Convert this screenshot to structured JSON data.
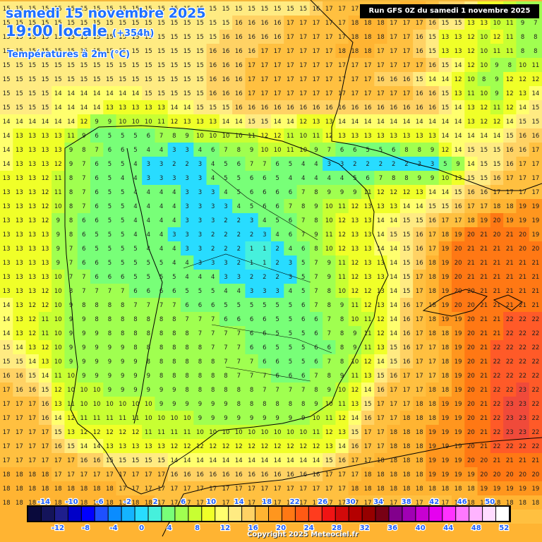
{
  "header": {
    "date_line": "samedi 15 novembre 2025",
    "time_line": "19:00 locale",
    "lead_time": "(+354h)",
    "variable": "Températures à 2m (°C)",
    "run_info": "Run GFS 0Z du samedi 1 novembre 2025"
  },
  "footer": {
    "copyright": "Copyright 2025 Meteociel.fr"
  },
  "colors": {
    "land_outline": "#000000",
    "value_text": "#202020"
  },
  "legend": {
    "upper_labels": [
      "-14",
      "-10",
      "-6",
      "-2",
      "2",
      "6",
      "10",
      "14",
      "18",
      "22",
      "26",
      "30",
      "34",
      "38",
      "42",
      "46",
      "50"
    ],
    "lower_labels": [
      "-12",
      "-8",
      "-4",
      "0",
      "4",
      "8",
      "12",
      "16",
      "20",
      "24",
      "28",
      "32",
      "36",
      "40",
      "44",
      "48",
      "52"
    ],
    "colors": [
      "#0a0a3c",
      "#14145a",
      "#1e1e8c",
      "#0000c8",
      "#0000ff",
      "#1e50ff",
      "#0a8cff",
      "#14b4ff",
      "#28dcff",
      "#46f0dc",
      "#78ff78",
      "#a0ff50",
      "#c8ff32",
      "#f0ff28",
      "#ffff6e",
      "#ffeb82",
      "#ffd264",
      "#ffb432",
      "#ff961e",
      "#ff7814",
      "#ff5a14",
      "#ff3c1e",
      "#f01414",
      "#d20a0a",
      "#b40000",
      "#960000",
      "#780014",
      "#82008c",
      "#a000b4",
      "#c800d2",
      "#e600f0",
      "#ff32ff",
      "#ff78ff",
      "#ffb4ff",
      "#ffdcff",
      "#ffffff"
    ]
  },
  "grid": {
    "rows": [
      "15 15 15 15 15 15 15 15 15 15 15 15 15 15 15 15 15 15 15 15 15 15 15 15 16 17 17 17 17 17 17 18 18 17 16 16 15 13 12 10 9 8",
      "15 15 15 15 15 15 15 15 15 15 15 15 15 15 15 15 15 15 16 16 16 16 17 17 17 17 17 18 18 18 17 17 17 16 15 15 13 13 10 11 9 7",
      "15 15 15 15 15 15 15 15 15 15 15 15 15 15 15 15 15 16 16 16 16 16 17 17 17 17 17 18 18 18 17 17 16 15 13 13 12 10 12 11 8 8",
      "15 15 15 15 15 15 15 15 15 15 15 15 15 15 15 15 16 16 16 16 17 17 17 17 17 17 18 18 18 17 17 17 16 15 13 13 12 10 11 11 8 8",
      "15 15 15 15 15 15 15 15 15 15 15 15 15 15 15 15 16 16 16 17 17 17 17 17 17 17 17 17 17 17 17 17 17 16 15 14 12 10 9 8 10 11",
      "15 15 15 15 15 15 15 15 15 15 15 15 15 15 15 15 16 16 16 17 17 17 17 17 17 17 17 17 17 16 16 16 15 14 14 12 10 8 9 12 12 12",
      "15 15 15 15 14 14 14 14 14 14 14 15 15 15 15 15 16 16 16 17 17 17 17 17 17 17 17 17 17 17 17 17 16 16 15 13 11 10 9 12 13 14",
      "15 15 15 15 14 14 14 14 13 13 13 13 13 14 14 15 15 15 16 16 16 16 16 16 16 16 16 16 16 16 16 16 16 16 15 14 13 12 11 12 14 15",
      "14 14 14 14 14 14 12 9 9 10 10 10 11 12 13 13 13 14 14 15 15 14 14 12 13 13 14 14 14 14 14 14 14 14 14 14 13 12 12 14 15 15",
      "14 13 13 13 13 11 9 6 5 5 5 6 7 8 9 10 10 10 10 11 12 12 11 10 11 12 13 13 13 13 13 13 13 13 14 14 14 14 14 15 16 16",
      "14 13 13 13 13 9 8 7 6 6 5 4 4 3 3 4 6 7 8 9 10 10 11 10 9 7 6 6 5 5 6 8 8 9 12 14 15 15 15 16 16 17",
      "14 13 13 13 12 9 7 6 5 5 4 3 3 2 2 3 4 5 6 7 7 6 5 4 4 3 3 2 2 2 2 2 3 3 5 9 14 15 15 16 17 17",
      "13 13 13 12 11 8 7 6 5 4 4 3 3 3 3 3 4 5 5 6 6 5 4 4 4 4 4 5 6 7 8 8 9 9 10 13 15 15 16 17 17 17",
      "13 13 13 12 11 8 7 6 5 5 4 4 4 4 3 3 3 4 5 6 6 6 6 7 8 9 9 9 11 12 12 12 13 14 14 15 16 16 17 17 17 17",
      "13 13 13 12 10 8 7 6 5 5 4 4 4 4 3 3 3 3 4 5 6 6 7 8 9 10 11 12 13 13 13 14 14 15 15 16 17 17 18 18 19 19",
      "13 13 13 12 9 8 6 6 5 5 4 4 4 4 3 3 3 2 2 3 4 5 6 7 8 10 12 13 13 14 14 15 15 16 17 17 18 19 20 19 19 19",
      "13 13 13 13 9 8 6 5 5 5 4 4 4 3 3 3 2 2 2 2 3 4 6 7 9 11 12 13 13 14 15 15 16 17 18 19 20 21 20 21 20 19",
      "13 13 13 13 9 7 6 5 5 5 5 4 4 4 3 3 2 2 2 1 1 2 4 6 8 10 12 13 13 14 14 15 16 17 19 20 21 21 21 21 20 20",
      "13 13 13 13 9 7 6 6 5 5 5 5 5 4 4 3 3 3 2 1 1 2 3 5 7 9 11 12 13 13 14 15 16 18 19 20 21 21 21 21 21 21",
      "13 13 13 13 10 7 7 6 6 6 5 5 5 5 4 4 4 3 3 2 2 2 3 5 7 9 11 12 13 13 14 15 17 18 19 20 21 21 21 21 21 21",
      "13 13 13 12 10 8 7 7 7 7 6 6 6 6 5 5 5 4 4 3 3 3 4 5 7 8 10 12 12 13 14 15 17 18 19 20 20 21 21 21 21 21",
      "14 13 12 12 10 9 8 8 8 8 7 7 7 7 6 6 6 5 5 5 5 5 5 6 7 8 9 11 12 13 14 16 17 18 19 20 20 21 21 21 21 21",
      "14 13 12 11 10 9 9 8 8 8 8 8 8 8 7 7 7 6 6 6 6 5 5 6 6 7 8 10 11 12 14 16 17 18 19 19 20 21 21 22 22 22",
      "14 13 12 11 10 9 9 9 8 8 8 8 8 8 8 7 7 7 7 6 6 5 5 5 6 7 8 9 11 12 14 16 17 18 18 19 20 21 21 22 22 22",
      "15 14 13 12 10 9 9 9 9 9 8 8 8 8 8 8 7 7 7 6 6 5 5 5 6 6 8 9 11 13 15 16 17 17 18 19 20 21 22 22 22 22",
      "15 15 14 13 10 9 9 9 9 9 9 8 8 8 8 8 8 7 7 7 6 6 5 5 6 7 8 10 12 14 15 16 17 17 18 19 20 21 22 22 22 22",
      "16 16 15 14 11 10 9 9 9 9 9 9 8 8 8 8 8 8 7 7 7 6 6 6 7 8 9 11 13 15 16 17 17 17 18 19 20 21 22 22 22 22",
      "17 16 16 15 12 10 10 10 9 9 9 9 9 9 8 8 8 8 8 8 7 7 7 7 8 9 10 12 14 16 17 17 17 18 18 19 20 21 22 22 23 22",
      "17 17 17 16 13 11 10 10 10 10 10 10 9 9 9 9 9 9 8 8 8 8 8 8 9 10 11 13 15 17 17 17 18 18 19 19 20 21 22 23 23 22",
      "17 17 17 16 14 12 11 11 11 11 11 10 10 10 10 9 9 9 9 9 9 9 9 9 10 11 12 14 16 17 17 18 18 18 19 19 20 21 22 23 23 22",
      "17 17 17 17 15 13 12 12 12 12 12 11 11 11 11 10 10 10 10 10 10 10 10 10 11 12 13 15 17 17 18 18 18 19 19 19 20 21 22 23 23 22",
      "17 17 17 17 16 15 14 14 13 13 13 13 13 12 12 12 12 12 12 12 12 12 12 12 12 13 14 16 17 17 18 18 18 19 19 19 20 21 22 22 22 22",
      "17 17 17 17 17 17 16 16 15 15 15 15 15 14 14 14 14 14 14 14 14 14 14 14 14 15 16 17 17 18 18 18 18 19 19 19 20 20 21 21 21 21",
      "18 18 18 18 17 17 17 17 17 17 17 17 17 16 16 16 16 16 16 16 16 16 16 16 16 17 17 17 18 18 18 18 18 19 19 19 19 20 20 20 20 20",
      "18 18 18 18 18 18 18 18 18 17 17 17 17 17 17 17 17 17 17 17 17 17 17 17 17 17 17 18 18 18 18 18 18 18 18 18 18 19 19 19 19 19",
      "18 18 18 18 18 18 18 18 18 18 18 18 17 17 17 17 17 17 17 17 17 17 17 17 17 17 17 17 17 17 17 17 17 17 17 18 18 18 18 18 18 18",
      "18 18 18 18 18 18 18 18 18 18 18 18 18 18 18 17 17 17 17 17 17 17 17 17 17 17 17 17 17 17 17 17 17 17 17 17 17 17 17 17 17 17",
      "18 18 18 18 18 18 18 18 18 18 18 18 18 18 18 18 18 18 18 18 18 18 18 18 18 18 18 18 18 18 18 18 18 18 18 18 18 18 18 18 18 18",
      "18 18 18 18 18 18 18 18 18 18 18 18 18 18 18 18 18 18 18 18 18 18 18 18 18 18 18 18 18 18 18 18 18 18 18 18 18 18 18 18 18 18"
    ]
  }
}
